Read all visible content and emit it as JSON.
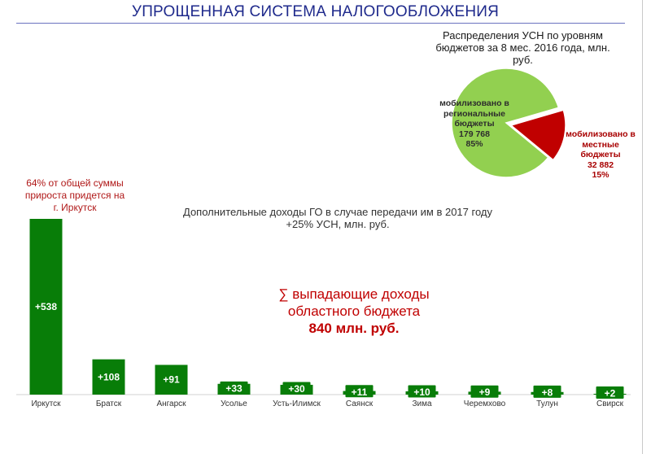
{
  "page_title": "УПРОЩЕННАЯ СИСТЕМА НАЛОГООБЛОЖЕНИЯ",
  "pie_title_lines": [
    "Распределения УСН по уровням",
    "бюджетов за 8 мес. 2016 года, млн.",
    "руб."
  ],
  "pie_labels": {
    "regional": [
      "мобилизовано в",
      "региональные",
      "бюджеты",
      "179 768",
      "85%"
    ],
    "local": [
      "мобилизовано в",
      "местные",
      "бюджеты",
      "32 882",
      "15%"
    ]
  },
  "bar_title_lines": [
    "Дополнительные доходы ГО в случае передачи им в 2017 году",
    "+25% УСН, млн. руб."
  ],
  "irkutsk_note_lines": [
    "64% от общей суммы",
    "прироста придется на",
    "г. Иркутск"
  ],
  "sum_note_lines": [
    "∑ выпадающие доходы",
    "областного бюджета",
    "840 млн. руб."
  ],
  "colors": {
    "bar": "#087d08",
    "pie_regional": "#92d050",
    "pie_local": "#c00000",
    "title": "#1f2a8c",
    "note_red": "#c00000"
  },
  "chart_data": [
    {
      "type": "pie",
      "title": "Распределения УСН по уровням бюджетов за 8 мес. 2016 года, млн. руб.",
      "slices": [
        {
          "label": "мобилизовано в региональные бюджеты",
          "value": 179768,
          "percent": 85
        },
        {
          "label": "мобилизовано в местные бюджеты",
          "value": 32882,
          "percent": 15
        }
      ]
    },
    {
      "type": "bar",
      "title": "Дополнительные доходы ГО в случае передачи им в 2017 году +25% УСН, млн. руб.",
      "categories": [
        "Иркутск",
        "Братск",
        "Ангарск",
        "Усолье",
        "Усть-Илимск",
        "Саянск",
        "Зима",
        "Черемхово",
        "Тулун",
        "Свирск"
      ],
      "values": [
        538,
        108,
        91,
        33,
        30,
        11,
        10,
        9,
        8,
        2
      ],
      "value_labels": [
        "+538",
        "+108",
        "+91",
        "+33",
        "+30",
        "+11",
        "+10",
        "+9",
        "+8",
        "+2"
      ],
      "ylim": [
        0,
        538
      ],
      "grid": false
    }
  ]
}
